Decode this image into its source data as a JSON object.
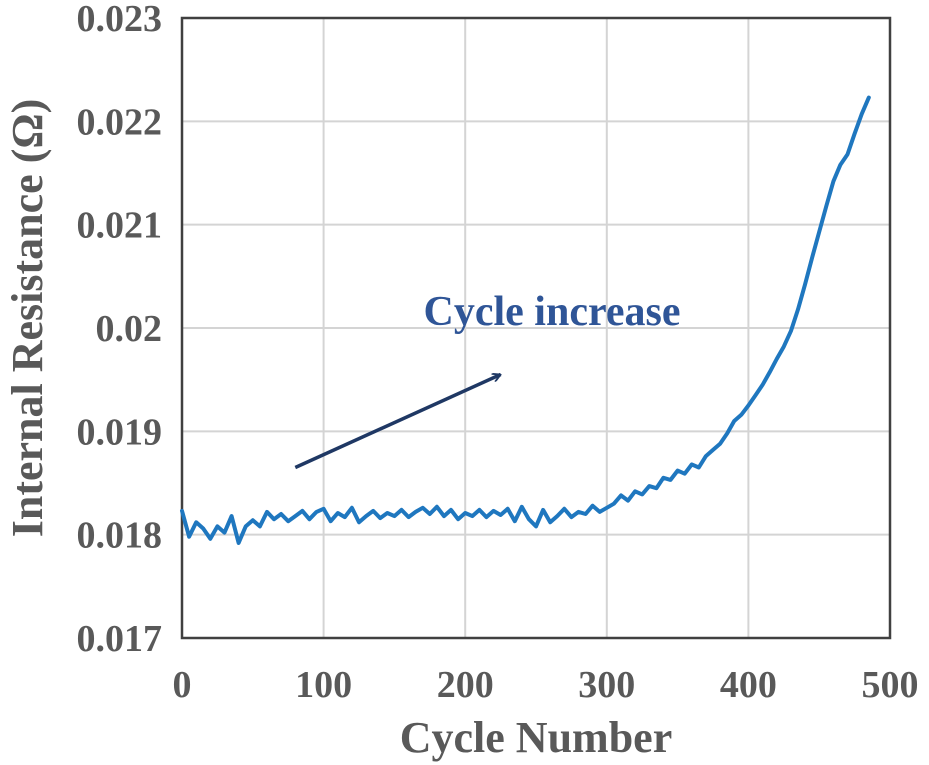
{
  "chart_data": {
    "type": "line",
    "title": "",
    "xlabel": "Cycle Number",
    "ylabel": "Internal Resistance (Ω)",
    "xlim": [
      0,
      500
    ],
    "ylim": [
      0.017,
      0.023
    ],
    "xticks": [
      0,
      100,
      200,
      300,
      400,
      500
    ],
    "xtick_labels": [
      "0",
      "100",
      "200",
      "300",
      "400",
      "500"
    ],
    "yticks": [
      0.017,
      0.018,
      0.019,
      0.02,
      0.021,
      0.022,
      0.023
    ],
    "ytick_labels": [
      "0.017",
      "0.018",
      "0.019",
      "0.02",
      "0.021",
      "0.022",
      "0.023"
    ],
    "grid": true,
    "legend": "none",
    "colors": {
      "series": "#1f77bf",
      "annotation_text": "#2f5597",
      "annotation_arrow": "#1f3864",
      "axis_text": "#595959",
      "grid": "#d4d4d4"
    },
    "annotations": [
      {
        "text": "Cycle increase",
        "arrow_from": [
          80,
          0.01865
        ],
        "arrow_to": [
          225,
          0.01955
        ]
      }
    ],
    "series": [
      {
        "x": [
          0,
          5,
          10,
          15,
          20,
          25,
          30,
          35,
          40,
          45,
          50,
          55,
          60,
          65,
          70,
          75,
          80,
          85,
          90,
          95,
          100,
          105,
          110,
          115,
          120,
          125,
          130,
          135,
          140,
          145,
          150,
          155,
          160,
          165,
          170,
          175,
          180,
          185,
          190,
          195,
          200,
          205,
          210,
          215,
          220,
          225,
          230,
          235,
          240,
          245,
          250,
          255,
          260,
          265,
          270,
          275,
          280,
          285,
          290,
          295,
          300,
          305,
          310,
          315,
          320,
          325,
          330,
          335,
          340,
          345,
          350,
          355,
          360,
          365,
          370,
          375,
          380,
          385,
          390,
          395,
          400,
          405,
          410,
          415,
          420,
          425,
          430,
          435,
          440,
          445,
          450,
          455,
          460,
          465,
          470,
          475,
          480,
          485
        ],
        "values": [
          0.01823,
          0.01798,
          0.01812,
          0.01806,
          0.01796,
          0.01808,
          0.01802,
          0.01818,
          0.01792,
          0.01808,
          0.01814,
          0.01808,
          0.01822,
          0.01815,
          0.0182,
          0.01813,
          0.01818,
          0.01823,
          0.01815,
          0.01822,
          0.01825,
          0.01813,
          0.01821,
          0.01817,
          0.01826,
          0.01812,
          0.01818,
          0.01823,
          0.01816,
          0.01821,
          0.01818,
          0.01824,
          0.01817,
          0.01822,
          0.01826,
          0.0182,
          0.01827,
          0.01818,
          0.01824,
          0.01815,
          0.01821,
          0.01818,
          0.01824,
          0.01817,
          0.01823,
          0.01819,
          0.01825,
          0.01813,
          0.01827,
          0.01815,
          0.01808,
          0.01824,
          0.01812,
          0.01818,
          0.01825,
          0.01817,
          0.01822,
          0.0182,
          0.01828,
          0.01822,
          0.01826,
          0.0183,
          0.01838,
          0.01833,
          0.01842,
          0.01839,
          0.01847,
          0.01845,
          0.01855,
          0.01853,
          0.01862,
          0.01859,
          0.01868,
          0.01865,
          0.01876,
          0.01882,
          0.01888,
          0.01898,
          0.0191,
          0.01916,
          0.01925,
          0.01935,
          0.01945,
          0.01957,
          0.0197,
          0.01982,
          0.01997,
          0.02018,
          0.02042,
          0.02068,
          0.02093,
          0.02118,
          0.02142,
          0.02158,
          0.02168,
          0.02188,
          0.02207,
          0.02223
        ]
      }
    ]
  }
}
